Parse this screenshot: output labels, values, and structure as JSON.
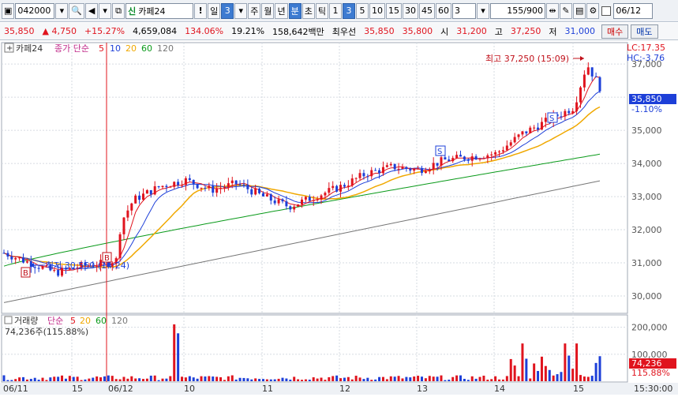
{
  "toolbar": {
    "code": "042000",
    "market_badge": "신",
    "stock_name": "카페24",
    "period_day": "일",
    "period_num": "3",
    "periods": [
      "주",
      "월",
      "년"
    ],
    "min_label": "분",
    "sec_label": "초",
    "tick_label": "틱",
    "tick_values": [
      "1",
      "3",
      "5",
      "10",
      "15",
      "30",
      "45",
      "60"
    ],
    "selected_tick": "3",
    "interval": "3",
    "count": "155",
    "count_total": "/900",
    "date": "06/12"
  },
  "quote": {
    "price": "35,850",
    "change": "4,750",
    "change_pct": "+15.27%",
    "volume": "4,659,084",
    "vol_ratio": "134.06%",
    "turnover": "19.21%",
    "amount": "158,642백만",
    "priority_label": "최우선",
    "ask": "35,850",
    "bid": "35,800",
    "open_label": "시",
    "open": "31,200",
    "high_label": "고",
    "high": "37,250",
    "low_label": "저",
    "low": "31,000",
    "buy_label": "매수",
    "sell_label": "매도"
  },
  "price_legend": {
    "name": "카페24",
    "indicator": "종가 단순",
    "ma_periods": [
      "5",
      "10",
      "20",
      "60",
      "120"
    ]
  },
  "lc_hc": [
    "LC:17.35",
    "HC:-3.76"
  ],
  "high_note": "최고 37,250 (15:09)",
  "low_note": "최저 30,550 (14:24)",
  "current_price_tag": "35,850",
  "current_pct_tag": "-1.10%",
  "volume_legend": {
    "name": "거래량",
    "indicator": "단순",
    "ma_periods": [
      "5",
      "20",
      "60",
      "120"
    ],
    "value": "74,236주(115.88%)"
  },
  "volume_tag": "74,236",
  "volume_pct_tag": "115.88%",
  "time_axis": {
    "labels": [
      "06/11",
      "15",
      "06/12",
      "10",
      "11",
      "12",
      "13",
      "14",
      "15"
    ],
    "current_time": "15:30:00"
  },
  "chart_data": {
    "type": "candlestick",
    "price_axis_ticks": [
      30000,
      31000,
      32000,
      33000,
      34000,
      35000,
      36000,
      37000
    ],
    "price_range": [
      29500,
      37600
    ],
    "volume_axis_ticks": [
      100000,
      200000
    ],
    "signals": [
      {
        "label": "B"
      },
      {
        "label": "B"
      },
      {
        "label": "S"
      },
      {
        "label": "S"
      }
    ],
    "colors": {
      "up": "#e0141e",
      "down": "#1d3fd8",
      "ma5": "#e0141e",
      "ma10": "#1d3fd8",
      "ma20": "#f0a800",
      "ma60": "#0a9a1a",
      "ma120": "#777777"
    }
  }
}
